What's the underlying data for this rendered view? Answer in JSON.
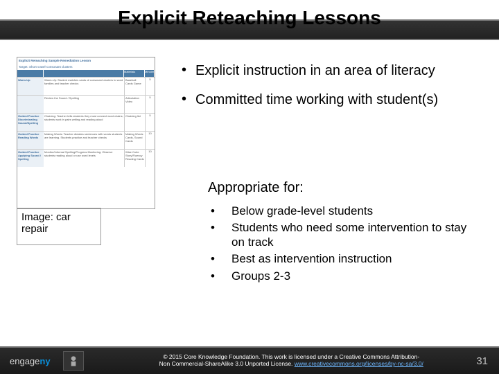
{
  "title": "Explicit Reteaching Lessons",
  "main_bullets": [
    "Explicit instruction in an area of literacy",
    "Committed time working with student(s)"
  ],
  "subheading": "Appropriate for:",
  "sub_bullets": [
    "Below grade-level students",
    "Students who need some intervention to stay on track",
    "Best as intervention instruction",
    "Groups 2-3"
  ],
  "image_box": "Image: car repair",
  "lesson_table": {
    "title": "Explicit Reteaching Sample Remediation Lesson",
    "target": "Target: Short vowel-consonant clusters",
    "columns": [
      "",
      "",
      "Materials",
      "Minutes"
    ],
    "rows": [
      {
        "label": "Warm-Up",
        "desc": "Warm-Up: Student matches cards of consonant clusters to word families and teacher checks",
        "mat": "Baseball Cards Game",
        "min": "5"
      },
      {
        "label": "",
        "desc": "Review the Sound / Spelling",
        "mat": "Articulation Video",
        "min": "5"
      },
      {
        "label": "Guided Practice Discriminating Sound/Spelling",
        "desc": "Chaining: Teacher tells students they must connect word chains; students work in pairs writing and reading aloud",
        "mat": "Chaining list",
        "min": "5"
      },
      {
        "label": "Guided Practice Reading Words",
        "desc": "Making Words: Teacher dictates sentences with words students are learning. Students practice and teacher checks",
        "mat": "Making Words Cards, Sound Cards",
        "min": "10"
      },
      {
        "label": "Guided Practice Applying Sound / Spelling",
        "desc": "Monitor/Informal Spelling/Progress Monitoring: Observe students reading aloud or use word levels",
        "mat": "Wise Cube Story/Fluency Reading Cards",
        "min": "10"
      }
    ]
  },
  "footer": {
    "logo_part1": "engage",
    "logo_part2": "ny",
    "license_1": "© 2015 Core Knowledge Foundation. This work is licensed under a Creative Commons Attribution-",
    "license_2": "Non Commercial-ShareAlike 3.0 Unported License. ",
    "license_link": "www.creativecommons.org/licenses/by-nc-sa/3.0/"
  },
  "page_number": "31",
  "colors": {
    "title_bar": "#2a2a2a",
    "accent": "#0a8dd6",
    "table_header": "#4a7ba6",
    "link": "#6fb8ff"
  }
}
